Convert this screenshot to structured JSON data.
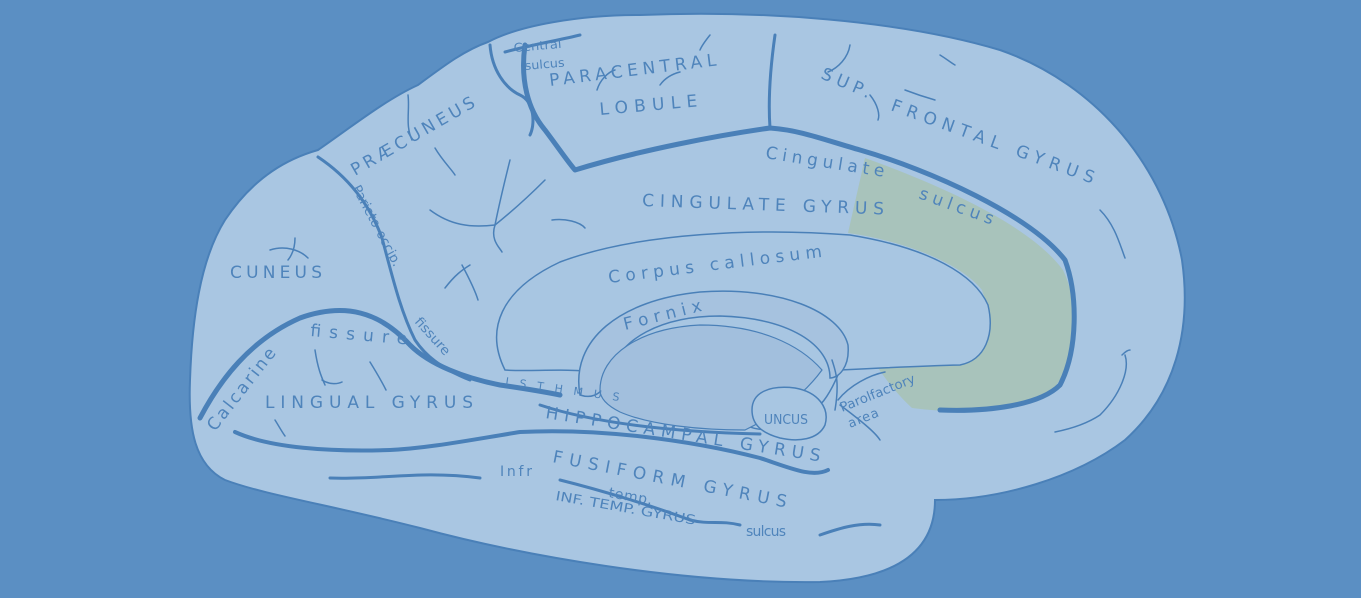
{
  "diagram": {
    "colors": {
      "background": "#5b8fc3",
      "cortex": "#a9c6e2",
      "inner": "#a4c0de",
      "sulcus": "#4a80b8",
      "label": "#4f84bb",
      "highlight": "#a8c3bb"
    },
    "labels": {
      "central_sulcus_1": "Central",
      "central_sulcus_2": "sulcus",
      "paracentral_1": "PARACENTRAL",
      "paracentral_2": "LOBULE",
      "sup_frontal": "SUP.",
      "frontal_gyrus": "FRONTAL GYRUS",
      "cingulate": "Cingulate",
      "sulcus": "sulcus",
      "cingulate_gyrus": "CINGULATE GYRUS",
      "praecuneus": "PRÆCUNEUS",
      "parieto_occip": "Parieto-occip.",
      "fissure": "fissure",
      "cuneus": "CUNEUS",
      "corpus_callosum": "Corpus callosum",
      "fornix": "Fornix",
      "calcarine": "Calcarine",
      "calcarine_fissure": "fissure",
      "lingual_gyrus": "LINGUAL GYRUS",
      "isthmus": "ISTHMUS",
      "hippocampal_gyrus": "HIPPOCAMPAL GYRUS",
      "uncus": "UNCUS",
      "parolfactory_1": "Parolfactory",
      "parolfactory_2": "area",
      "fusiform_gyrus": "FUSIFORM GYRUS",
      "infr": "Infr",
      "temp": "temp.",
      "inf_temp_gyrus": "INF. TEMP. GYRUS",
      "temp_sulcus": "sulcus"
    }
  }
}
